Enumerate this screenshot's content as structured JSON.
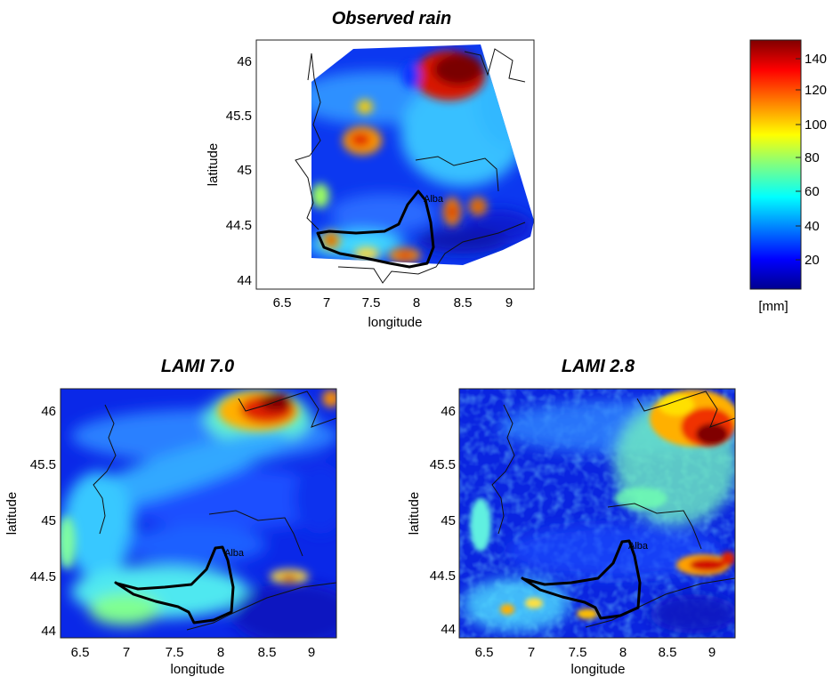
{
  "panels": {
    "observed": {
      "title": "Observed rain",
      "xlabel": "longitude",
      "ylabel": "latitude",
      "x_ticks": [
        "6.5",
        "7",
        "7.5",
        "8",
        "8.5",
        "9"
      ],
      "y_ticks": [
        "46",
        "45.5",
        "45",
        "44.5",
        "44"
      ],
      "place_label": "Alba"
    },
    "lami7": {
      "title": "LAMI 7.0",
      "xlabel": "longitude",
      "ylabel": "latitude",
      "x_ticks": [
        "6.5",
        "7",
        "7.5",
        "8",
        "8.5",
        "9"
      ],
      "y_ticks": [
        "46",
        "45.5",
        "45",
        "44.5",
        "44"
      ],
      "place_label": "Alba"
    },
    "lami28": {
      "title": "LAMI 2.8",
      "xlabel": "longitude",
      "ylabel": "latitude",
      "x_ticks": [
        "6.5",
        "7",
        "7.5",
        "8",
        "8.5",
        "9"
      ],
      "y_ticks": [
        "46",
        "45.5",
        "45",
        "44.5",
        "44"
      ],
      "place_label": "Alba"
    }
  },
  "colorbar": {
    "ticks": [
      "140",
      "120",
      "100",
      "80",
      "60",
      "40",
      "20"
    ],
    "unit": "[mm]",
    "colors": [
      "#00008f",
      "#0000ff",
      "#0080ff",
      "#00ffff",
      "#80ff80",
      "#ffff00",
      "#ff8000",
      "#ff0000",
      "#800000"
    ]
  }
}
